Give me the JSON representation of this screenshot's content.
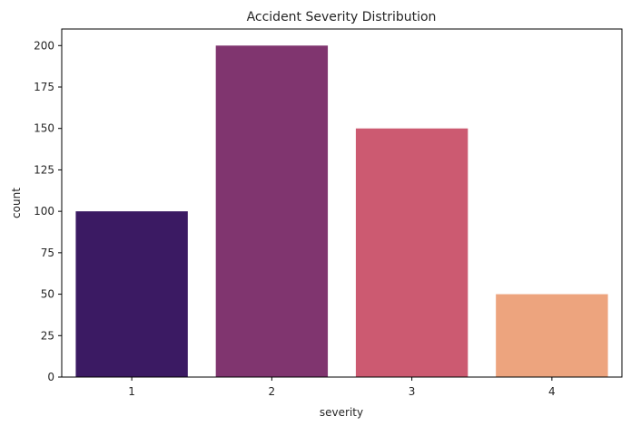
{
  "chart_data": {
    "type": "bar",
    "title": "Accident Severity Distribution",
    "xlabel": "severity",
    "ylabel": "count",
    "categories": [
      "1",
      "2",
      "3",
      "4"
    ],
    "values": [
      100,
      200,
      150,
      50
    ],
    "colors": [
      "#3b1a63",
      "#80356f",
      "#cc5a71",
      "#eda47e"
    ],
    "ylim": [
      0,
      210
    ],
    "yticks": [
      0,
      25,
      50,
      75,
      100,
      125,
      150,
      175,
      200
    ],
    "grid": false,
    "legend": "none"
  }
}
